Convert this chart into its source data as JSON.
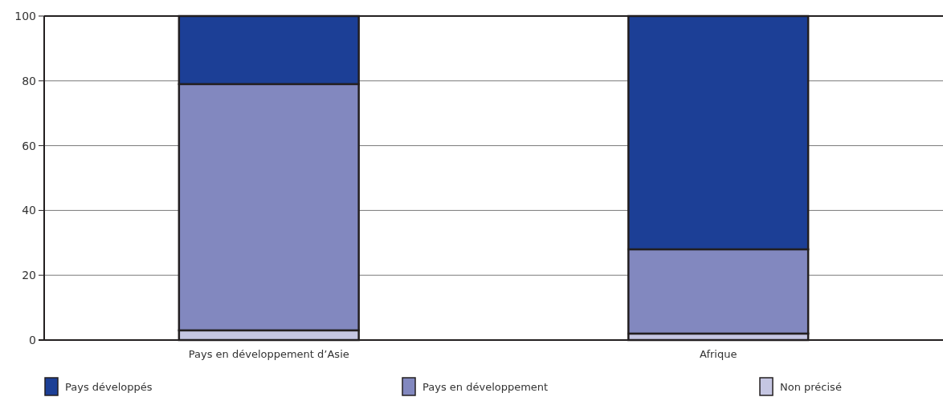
{
  "chart_data": {
    "type": "bar",
    "stacked": true,
    "categories": [
      "Pays en développement d’Asie",
      "Afrique"
    ],
    "series": [
      {
        "name": "Non précisé",
        "color": "#c5c6e2",
        "values": [
          3,
          2
        ]
      },
      {
        "name": "Pays en développement",
        "color": "#8288bf",
        "values": [
          76,
          26
        ]
      },
      {
        "name": "Pays développés",
        "color": "#1c3f96",
        "values": [
          21,
          72
        ]
      }
    ],
    "ylim": [
      0,
      100
    ],
    "yticks": [
      0,
      20,
      40,
      60,
      80,
      100
    ],
    "grid": "y",
    "legend": "bottom"
  }
}
